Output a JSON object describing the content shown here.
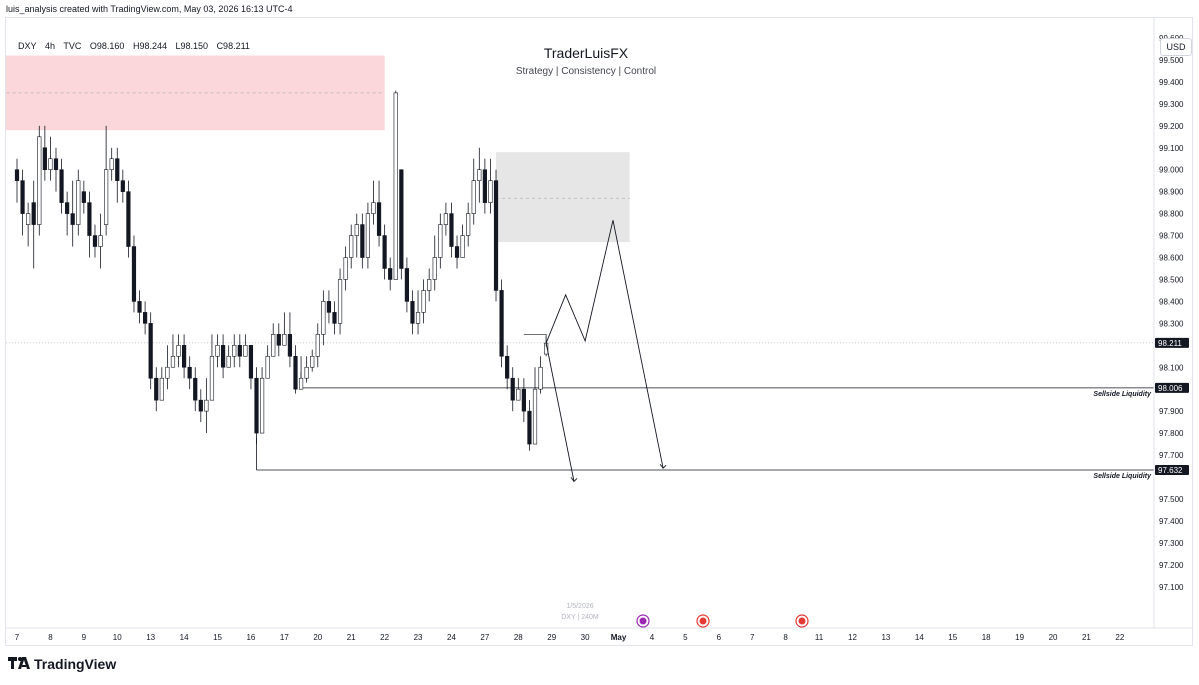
{
  "caption": "luis_analysis created with TradingView.com, May 03, 2026 16:13 UTC-4",
  "symbol": {
    "name": "DXY",
    "interval": "4h",
    "exchange": "TVC",
    "open": "O98.160",
    "high": "H98.244",
    "low": "L98.150",
    "close": "C98.211"
  },
  "header": {
    "title": "TraderLuisFX",
    "subtitle": "Strategy | Consistency | Control"
  },
  "currency": "USD",
  "branding": "TradingView",
  "watermark": {
    "date": "1/5/2026",
    "series": "DXY | 240M"
  },
  "chart_data": {
    "type": "candlestick",
    "interval": "4h",
    "ylim": [
      97.03,
      99.78
    ],
    "yticks": [
      99.6,
      99.5,
      99.4,
      99.3,
      99.2,
      99.1,
      99.0,
      98.9,
      98.8,
      98.7,
      98.6,
      98.5,
      98.4,
      98.3,
      98.1,
      97.9,
      97.8,
      97.7,
      97.5,
      97.4,
      97.3,
      97.2,
      97.1
    ],
    "ytick_labels": [
      "99.600",
      "99.500",
      "99.400",
      "99.300",
      "99.200",
      "99.100",
      "99.000",
      "98.900",
      "98.800",
      "98.700",
      "98.600",
      "98.500",
      "98.400",
      "98.300",
      "98.100",
      "97.900",
      "97.800",
      "97.700",
      "97.500",
      "97.400",
      "97.300",
      "97.200",
      "97.100"
    ],
    "xticks": [
      {
        "label": "7",
        "bar": 0
      },
      {
        "label": "8",
        "bar": 6
      },
      {
        "label": "9",
        "bar": 12
      },
      {
        "label": "10",
        "bar": 18
      },
      {
        "label": "13",
        "bar": 24
      },
      {
        "label": "14",
        "bar": 30
      },
      {
        "label": "15",
        "bar": 36
      },
      {
        "label": "16",
        "bar": 42
      },
      {
        "label": "17",
        "bar": 48
      },
      {
        "label": "20",
        "bar": 54
      },
      {
        "label": "21",
        "bar": 60
      },
      {
        "label": "22",
        "bar": 66
      },
      {
        "label": "23",
        "bar": 72
      },
      {
        "label": "24",
        "bar": 78
      },
      {
        "label": "27",
        "bar": 84
      },
      {
        "label": "28",
        "bar": 90
      },
      {
        "label": "29",
        "bar": 96
      },
      {
        "label": "30",
        "bar": 102
      },
      {
        "label": "May",
        "bar": 108,
        "bold": true
      },
      {
        "label": "4",
        "bar": 114
      },
      {
        "label": "5",
        "bar": 120
      },
      {
        "label": "6",
        "bar": 126
      },
      {
        "label": "7",
        "bar": 132
      },
      {
        "label": "8",
        "bar": 138
      },
      {
        "label": "11",
        "bar": 144
      },
      {
        "label": "12",
        "bar": 150
      },
      {
        "label": "13",
        "bar": 156
      },
      {
        "label": "14",
        "bar": 162
      },
      {
        "label": "15",
        "bar": 168
      },
      {
        "label": "18",
        "bar": 174
      },
      {
        "label": "19",
        "bar": 180
      },
      {
        "label": "20",
        "bar": 186
      },
      {
        "label": "21",
        "bar": 192
      },
      {
        "label": "22",
        "bar": 198
      }
    ],
    "candles": [
      [
        99.0,
        98.95,
        99.05,
        98.85
      ],
      [
        98.95,
        98.8,
        99.0,
        98.7
      ],
      [
        98.75,
        98.8,
        98.85,
        98.65
      ],
      [
        98.85,
        98.75,
        98.95,
        98.55
      ],
      [
        98.75,
        99.15,
        99.2,
        98.7
      ],
      [
        99.1,
        99.0,
        99.2,
        98.95
      ],
      [
        99.0,
        99.05,
        99.15,
        98.95
      ],
      [
        99.05,
        99.0,
        99.1,
        98.9
      ],
      [
        99.0,
        98.85,
        99.05,
        98.8
      ],
      [
        98.85,
        98.8,
        98.9,
        98.7
      ],
      [
        98.8,
        98.75,
        98.95,
        98.65
      ],
      [
        98.75,
        98.95,
        99.0,
        98.7
      ],
      [
        98.9,
        98.85,
        98.95,
        98.8
      ],
      [
        98.85,
        98.7,
        98.9,
        98.6
      ],
      [
        98.7,
        98.65,
        98.75,
        98.6
      ],
      [
        98.65,
        98.7,
        98.8,
        98.55
      ],
      [
        98.75,
        99.0,
        99.2,
        98.7
      ],
      [
        99.0,
        99.05,
        99.1,
        98.95
      ],
      [
        99.05,
        98.95,
        99.1,
        98.85
      ],
      [
        98.95,
        98.9,
        99.0,
        98.85
      ],
      [
        98.9,
        98.65,
        98.95,
        98.6
      ],
      [
        98.65,
        98.4,
        98.7,
        98.35
      ],
      [
        98.4,
        98.35,
        98.45,
        98.3
      ],
      [
        98.35,
        98.3,
        98.4,
        98.25
      ],
      [
        98.3,
        98.05,
        98.35,
        98.0
      ],
      [
        98.05,
        97.95,
        98.1,
        97.9
      ],
      [
        97.95,
        98.05,
        98.1,
        97.95
      ],
      [
        98.05,
        98.1,
        98.2,
        98.0
      ],
      [
        98.1,
        98.15,
        98.25,
        98.1
      ],
      [
        98.15,
        98.2,
        98.25,
        98.1
      ],
      [
        98.2,
        98.1,
        98.25,
        98.05
      ],
      [
        98.1,
        98.05,
        98.15,
        98.0
      ],
      [
        98.05,
        97.95,
        98.1,
        97.9
      ],
      [
        97.95,
        97.9,
        98.0,
        97.85
      ],
      [
        97.9,
        97.95,
        98.05,
        97.8
      ],
      [
        97.95,
        98.15,
        98.25,
        97.95
      ],
      [
        98.15,
        98.2,
        98.25,
        98.1
      ],
      [
        98.2,
        98.1,
        98.25,
        98.05
      ],
      [
        98.1,
        98.15,
        98.2,
        98.1
      ],
      [
        98.15,
        98.2,
        98.25,
        98.1
      ],
      [
        98.2,
        98.15,
        98.25,
        98.1
      ],
      [
        98.15,
        98.2,
        98.25,
        98.15
      ],
      [
        98.2,
        98.05,
        98.2,
        98.0
      ],
      [
        98.05,
        97.8,
        98.1,
        97.75
      ],
      [
        97.8,
        98.05,
        98.1,
        97.8
      ],
      [
        98.05,
        98.15,
        98.2,
        98.05
      ],
      [
        98.15,
        98.25,
        98.3,
        98.15
      ],
      [
        98.25,
        98.2,
        98.3,
        98.15
      ],
      [
        98.2,
        98.25,
        98.35,
        98.2
      ],
      [
        98.25,
        98.15,
        98.35,
        98.1
      ],
      [
        98.15,
        98.0,
        98.2,
        97.98
      ],
      [
        98.0,
        98.05,
        98.08,
        98.0
      ],
      [
        98.05,
        98.1,
        98.15,
        98.03
      ],
      [
        98.1,
        98.15,
        98.18,
        98.08
      ],
      [
        98.15,
        98.25,
        98.3,
        98.1
      ],
      [
        98.25,
        98.4,
        98.45,
        98.2
      ],
      [
        98.4,
        98.35,
        98.45,
        98.3
      ],
      [
        98.35,
        98.3,
        98.4,
        98.25
      ],
      [
        98.3,
        98.5,
        98.55,
        98.25
      ],
      [
        98.5,
        98.6,
        98.65,
        98.45
      ],
      [
        98.6,
        98.7,
        98.75,
        98.55
      ],
      [
        98.7,
        98.75,
        98.8,
        98.6
      ],
      [
        98.75,
        98.6,
        98.8,
        98.55
      ],
      [
        98.6,
        98.8,
        98.85,
        98.55
      ],
      [
        98.8,
        98.85,
        98.95,
        98.75
      ],
      [
        98.85,
        98.7,
        98.95,
        98.65
      ],
      [
        98.7,
        98.55,
        98.75,
        98.5
      ],
      [
        98.55,
        98.5,
        98.6,
        98.45
      ],
      [
        98.5,
        99.35,
        99.36,
        98.5
      ],
      [
        99.0,
        98.55,
        99.0,
        98.5
      ],
      [
        98.55,
        98.4,
        98.6,
        98.35
      ],
      [
        98.4,
        98.3,
        98.45,
        98.25
      ],
      [
        98.3,
        98.35,
        98.45,
        98.25
      ],
      [
        98.35,
        98.45,
        98.5,
        98.3
      ],
      [
        98.45,
        98.5,
        98.55,
        98.4
      ],
      [
        98.5,
        98.6,
        98.7,
        98.45
      ],
      [
        98.6,
        98.75,
        98.8,
        98.55
      ],
      [
        98.75,
        98.8,
        98.85,
        98.7
      ],
      [
        98.8,
        98.65,
        98.85,
        98.6
      ],
      [
        98.65,
        98.6,
        98.7,
        98.55
      ],
      [
        98.6,
        98.7,
        98.75,
        98.6
      ],
      [
        98.7,
        98.8,
        98.85,
        98.65
      ],
      [
        98.8,
        98.95,
        99.05,
        98.75
      ],
      [
        98.95,
        99.0,
        99.1,
        98.85
      ],
      [
        99.0,
        98.85,
        99.05,
        98.8
      ],
      [
        98.85,
        98.95,
        99.05,
        98.8
      ],
      [
        98.95,
        98.45,
        99.0,
        98.4
      ],
      [
        98.45,
        98.15,
        98.5,
        98.1
      ],
      [
        98.15,
        98.05,
        98.2,
        98.0
      ],
      [
        98.05,
        97.95,
        98.1,
        97.9
      ],
      [
        97.95,
        98.0,
        98.05,
        97.95
      ],
      [
        98.0,
        97.9,
        98.05,
        97.85
      ],
      [
        97.9,
        97.75,
        97.95,
        97.72
      ],
      [
        97.75,
        98.0,
        98.1,
        97.75
      ],
      [
        98.0,
        98.1,
        98.15,
        97.98
      ],
      [
        98.16,
        98.21,
        98.24,
        98.15
      ]
    ],
    "zones": [
      {
        "name": "supply-zone",
        "from_bar": -4,
        "to_bar": 66,
        "high": 99.52,
        "low": 99.18,
        "mid": 99.35,
        "color": "#fbd6da"
      },
      {
        "name": "demand-zone",
        "from_bar": 86,
        "to_bar": 110,
        "high": 99.08,
        "low": 98.67,
        "mid": 98.87,
        "color": "#e6e6e6"
      }
    ],
    "levels": [
      {
        "label": "Sellside Liquidity",
        "price": 98.006,
        "tag": "98.006",
        "from_bar": 51
      },
      {
        "label": "Sellside Liquidity",
        "price": 97.632,
        "tag": "97.632",
        "from_bar": 43
      }
    ],
    "current_price": {
      "price": 98.211,
      "tag": "98.211"
    },
    "projection_1": [
      [
        95,
        98.21
      ],
      [
        98.5,
        98.43
      ],
      [
        102,
        98.22
      ],
      [
        107,
        98.77
      ],
      [
        116,
        97.64
      ]
    ],
    "projection_2": [
      [
        95,
        98.21
      ],
      [
        100,
        97.58
      ]
    ],
    "box_marker": {
      "from_bar": 91,
      "to_bar": 95,
      "price": 98.25
    }
  }
}
